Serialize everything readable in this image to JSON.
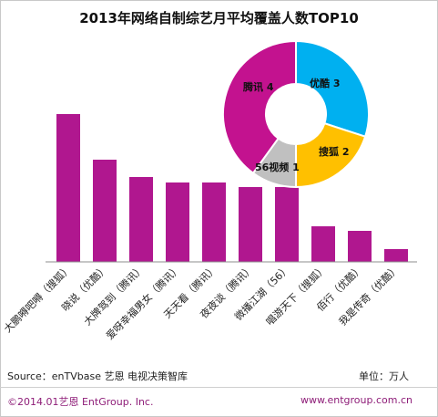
{
  "title": "2013年网络自制综艺月平均覆盖人数TOP10",
  "footer": {
    "source": "Source：enTVbase 艺恩 电视决策智库",
    "unit": "单位：万人",
    "copyright": "©2014.01艺恩 EntGroup. Inc.",
    "website": "www.entgroup.com.cn"
  },
  "colors": {
    "bar": "#b0178f",
    "frame": "#c9c9c9",
    "footer_text": "#8e1d78"
  },
  "chart_data": [
    {
      "type": "bar",
      "title": "",
      "xlabel": "",
      "ylabel": "",
      "categories": [
        "大鹏嘚吧嘚（搜狐）",
        "晓说（优酷）",
        "大牌驾到（腾讯）",
        "爱呀幸福男女（腾讯）",
        "天天看（腾讯）",
        "夜夜谈（腾讯）",
        "微播江湖（56）",
        "唱游天下（搜狐）",
        "佰行（优酷）",
        "我是传奇（优酷）"
      ],
      "values": [
        162,
        112,
        93,
        87,
        87,
        82,
        82,
        39,
        34,
        14
      ],
      "ylim": [
        0,
        180
      ],
      "grid": false,
      "legend": "none"
    },
    {
      "type": "pie",
      "style": "doughnut",
      "categories": [
        "优酷",
        "搜狐",
        "56视频",
        "腾讯"
      ],
      "values": [
        3,
        2,
        1,
        4
      ],
      "labels": [
        "优酷 3",
        "搜狐 2",
        "56视频 1",
        "腾讯 4"
      ],
      "colors": [
        "#00b0f0",
        "#ffc000",
        "#c0c0c0",
        "#c3128f"
      ]
    }
  ]
}
